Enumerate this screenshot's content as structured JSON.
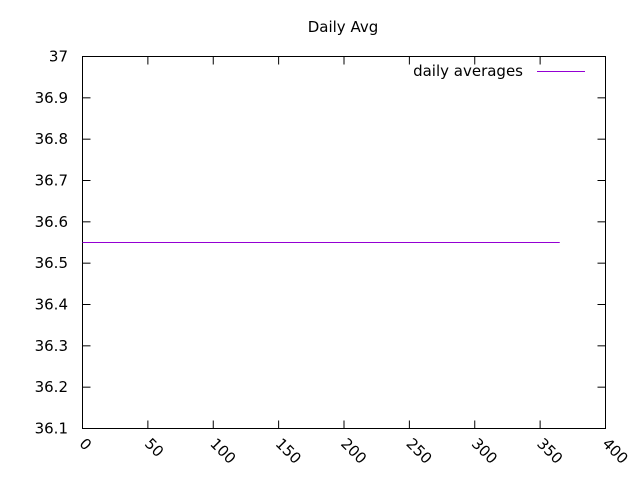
{
  "chart_data": {
    "type": "line",
    "title": "Daily Avg",
    "xlabel": "",
    "ylabel": "",
    "xlim": [
      0,
      400
    ],
    "ylim": [
      36.1,
      37
    ],
    "x_ticks": [
      0,
      50,
      100,
      150,
      200,
      250,
      300,
      350,
      400
    ],
    "x_tick_labels": [
      "0",
      "50",
      "100",
      "150",
      "200",
      "250",
      "300",
      "350",
      "400"
    ],
    "y_ticks": [
      36.1,
      36.2,
      36.3,
      36.4,
      36.5,
      36.6,
      36.7,
      36.8,
      36.9,
      37
    ],
    "y_tick_labels": [
      "36.1",
      "36.2",
      "36.3",
      "36.4",
      "36.5",
      "36.6",
      "36.7",
      "36.8",
      "36.9",
      "37"
    ],
    "grid": false,
    "legend_position": "top-right",
    "series": [
      {
        "name": "daily averages",
        "color": "#9400d3",
        "x": [
          0,
          365
        ],
        "y": [
          36.55,
          36.55
        ]
      }
    ]
  }
}
